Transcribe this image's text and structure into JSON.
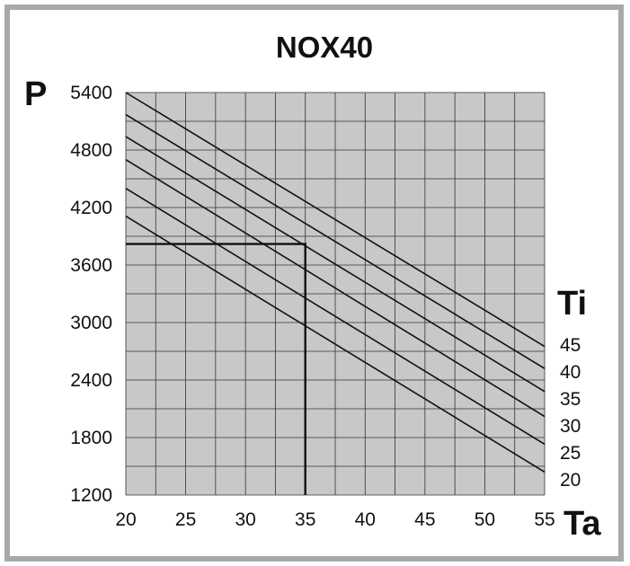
{
  "chart_data": {
    "type": "line",
    "title": "NOX40",
    "ylabel": "P",
    "xlabel": "Ta",
    "legend_title": "Ti",
    "xlim": [
      20,
      55
    ],
    "ylim": [
      1200,
      5400
    ],
    "xticks": [
      20,
      25,
      30,
      35,
      40,
      45,
      50,
      55
    ],
    "yticks": [
      1200,
      1800,
      2400,
      3000,
      3600,
      4200,
      4800,
      5400
    ],
    "grid": true,
    "plot_background": "#c8c8c8",
    "line_color": "#111111",
    "series": [
      {
        "name": "45",
        "x": [
          20,
          55
        ],
        "y": [
          5400,
          2750
        ]
      },
      {
        "name": "40",
        "x": [
          20,
          55
        ],
        "y": [
          5170,
          2520
        ]
      },
      {
        "name": "35",
        "x": [
          20,
          55
        ],
        "y": [
          4940,
          2280
        ]
      },
      {
        "name": "30",
        "x": [
          20,
          55
        ],
        "y": [
          4700,
          2020
        ]
      },
      {
        "name": "25",
        "x": [
          20,
          55
        ],
        "y": [
          4400,
          1730
        ]
      },
      {
        "name": "20",
        "x": [
          20,
          55
        ],
        "y": [
          4110,
          1440
        ]
      }
    ],
    "reference_lines": {
      "x": 35,
      "y": 3820
    }
  }
}
